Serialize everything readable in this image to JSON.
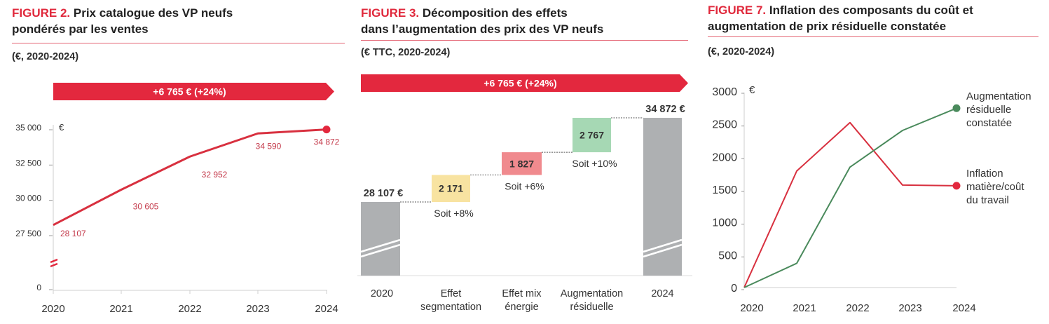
{
  "colors": {
    "accent_red": "#e3283e",
    "line_red": "#d8303f",
    "label_red": "#c43a4b",
    "line_green": "#4a8a5c",
    "bar_grey": "#aeb0b2",
    "box_yellow": "#f8e3a1",
    "box_red": "#f08a8e",
    "box_green": "#a6d8b4",
    "axis_grey": "#cfcfcf",
    "text_dark": "#333333"
  },
  "chart_data": [
    {
      "id": "figure-2",
      "type": "line",
      "title_prefix": "FIGURE 2.",
      "title_line1": "Prix catalogue des VP neufs",
      "title_line2": "pondérés par les ventes",
      "subtitle": "(€, 2020-2024)",
      "banner": "+6 765 €   (+24%)",
      "unit": "€",
      "x": [
        "2020",
        "2021",
        "2022",
        "2023",
        "2024"
      ],
      "series": [
        {
          "name": "Prix catalogue pondéré",
          "values": [
            28107,
            30605,
            32952,
            34590,
            34872
          ],
          "labels": [
            "28 107",
            "30 605",
            "32 952",
            "34 590",
            "34 872"
          ]
        }
      ],
      "y_ticks": [
        {
          "value": 35000,
          "label": "35 000"
        },
        {
          "value": 32500,
          "label": "32 500"
        },
        {
          "value": 30000,
          "label": "30 000"
        },
        {
          "value": 27500,
          "label": "27 500"
        },
        {
          "value": 0,
          "label": "0"
        }
      ],
      "ylim": [
        27500,
        35000
      ],
      "axis_break": true,
      "grid": false,
      "xlabel": "",
      "ylabel": "€"
    },
    {
      "id": "figure-3",
      "type": "bar",
      "subtype": "waterfall",
      "title_prefix": "FIGURE 3.",
      "title_line1": "Décomposition des effets",
      "title_line2": "dans l’augmentation des prix des VP neufs",
      "subtitle": "(€ TTC, 2020-2024)",
      "banner": "+6 765 €   (+24%)",
      "categories": [
        [
          "2020"
        ],
        [
          "Effet",
          "segmentation"
        ],
        [
          "Effet mix",
          "énergie"
        ],
        [
          "Augmentation",
          "résiduelle"
        ],
        [
          "2024"
        ]
      ],
      "steps": [
        {
          "kind": "total",
          "value": 28107,
          "label": "28 107 €"
        },
        {
          "kind": "delta",
          "value": 2171,
          "label": "2 171",
          "note": "Soit +8%",
          "color": "yellow"
        },
        {
          "kind": "delta",
          "value": 1827,
          "label": "1 827",
          "note": "Soit +6%",
          "color": "red"
        },
        {
          "kind": "delta",
          "value": 2767,
          "label": "2 767",
          "note": "Soit +10%",
          "color": "green"
        },
        {
          "kind": "total",
          "value": 34872,
          "label": "34 872 €"
        }
      ],
      "axis_break": true,
      "grid": false
    },
    {
      "id": "figure-7",
      "type": "line",
      "title_prefix": "FIGURE 7.",
      "title_line1": "Inflation des composants du coût et",
      "title_line2": "augmentation de prix résiduelle constatée",
      "subtitle": "(€, 2020-2024)",
      "unit": "€",
      "x": [
        "2020",
        "2021",
        "2022",
        "2023",
        "2024"
      ],
      "series": [
        {
          "name": "Inflation matière/coût du travail",
          "legend_lines": [
            "Inflation",
            "matière/coût",
            "du travail"
          ],
          "color": "red",
          "values": [
            0,
            1780,
            2520,
            1565,
            1555
          ]
        },
        {
          "name": "Augmentation résiduelle constatée",
          "legend_lines": [
            "Augmentation",
            "résiduelle",
            "constatée"
          ],
          "color": "green",
          "values": [
            0,
            370,
            1840,
            2400,
            2740
          ]
        }
      ],
      "y_ticks": [
        {
          "value": 3000,
          "label": "3000"
        },
        {
          "value": 2500,
          "label": "2500"
        },
        {
          "value": 2000,
          "label": "2000"
        },
        {
          "value": 1500,
          "label": "1500"
        },
        {
          "value": 1000,
          "label": "1000"
        },
        {
          "value": 500,
          "label": "500"
        },
        {
          "value": 0,
          "label": "0"
        }
      ],
      "ylim": [
        0,
        3000
      ],
      "legend": "right",
      "grid": false,
      "xlabel": "",
      "ylabel": "€"
    }
  ]
}
